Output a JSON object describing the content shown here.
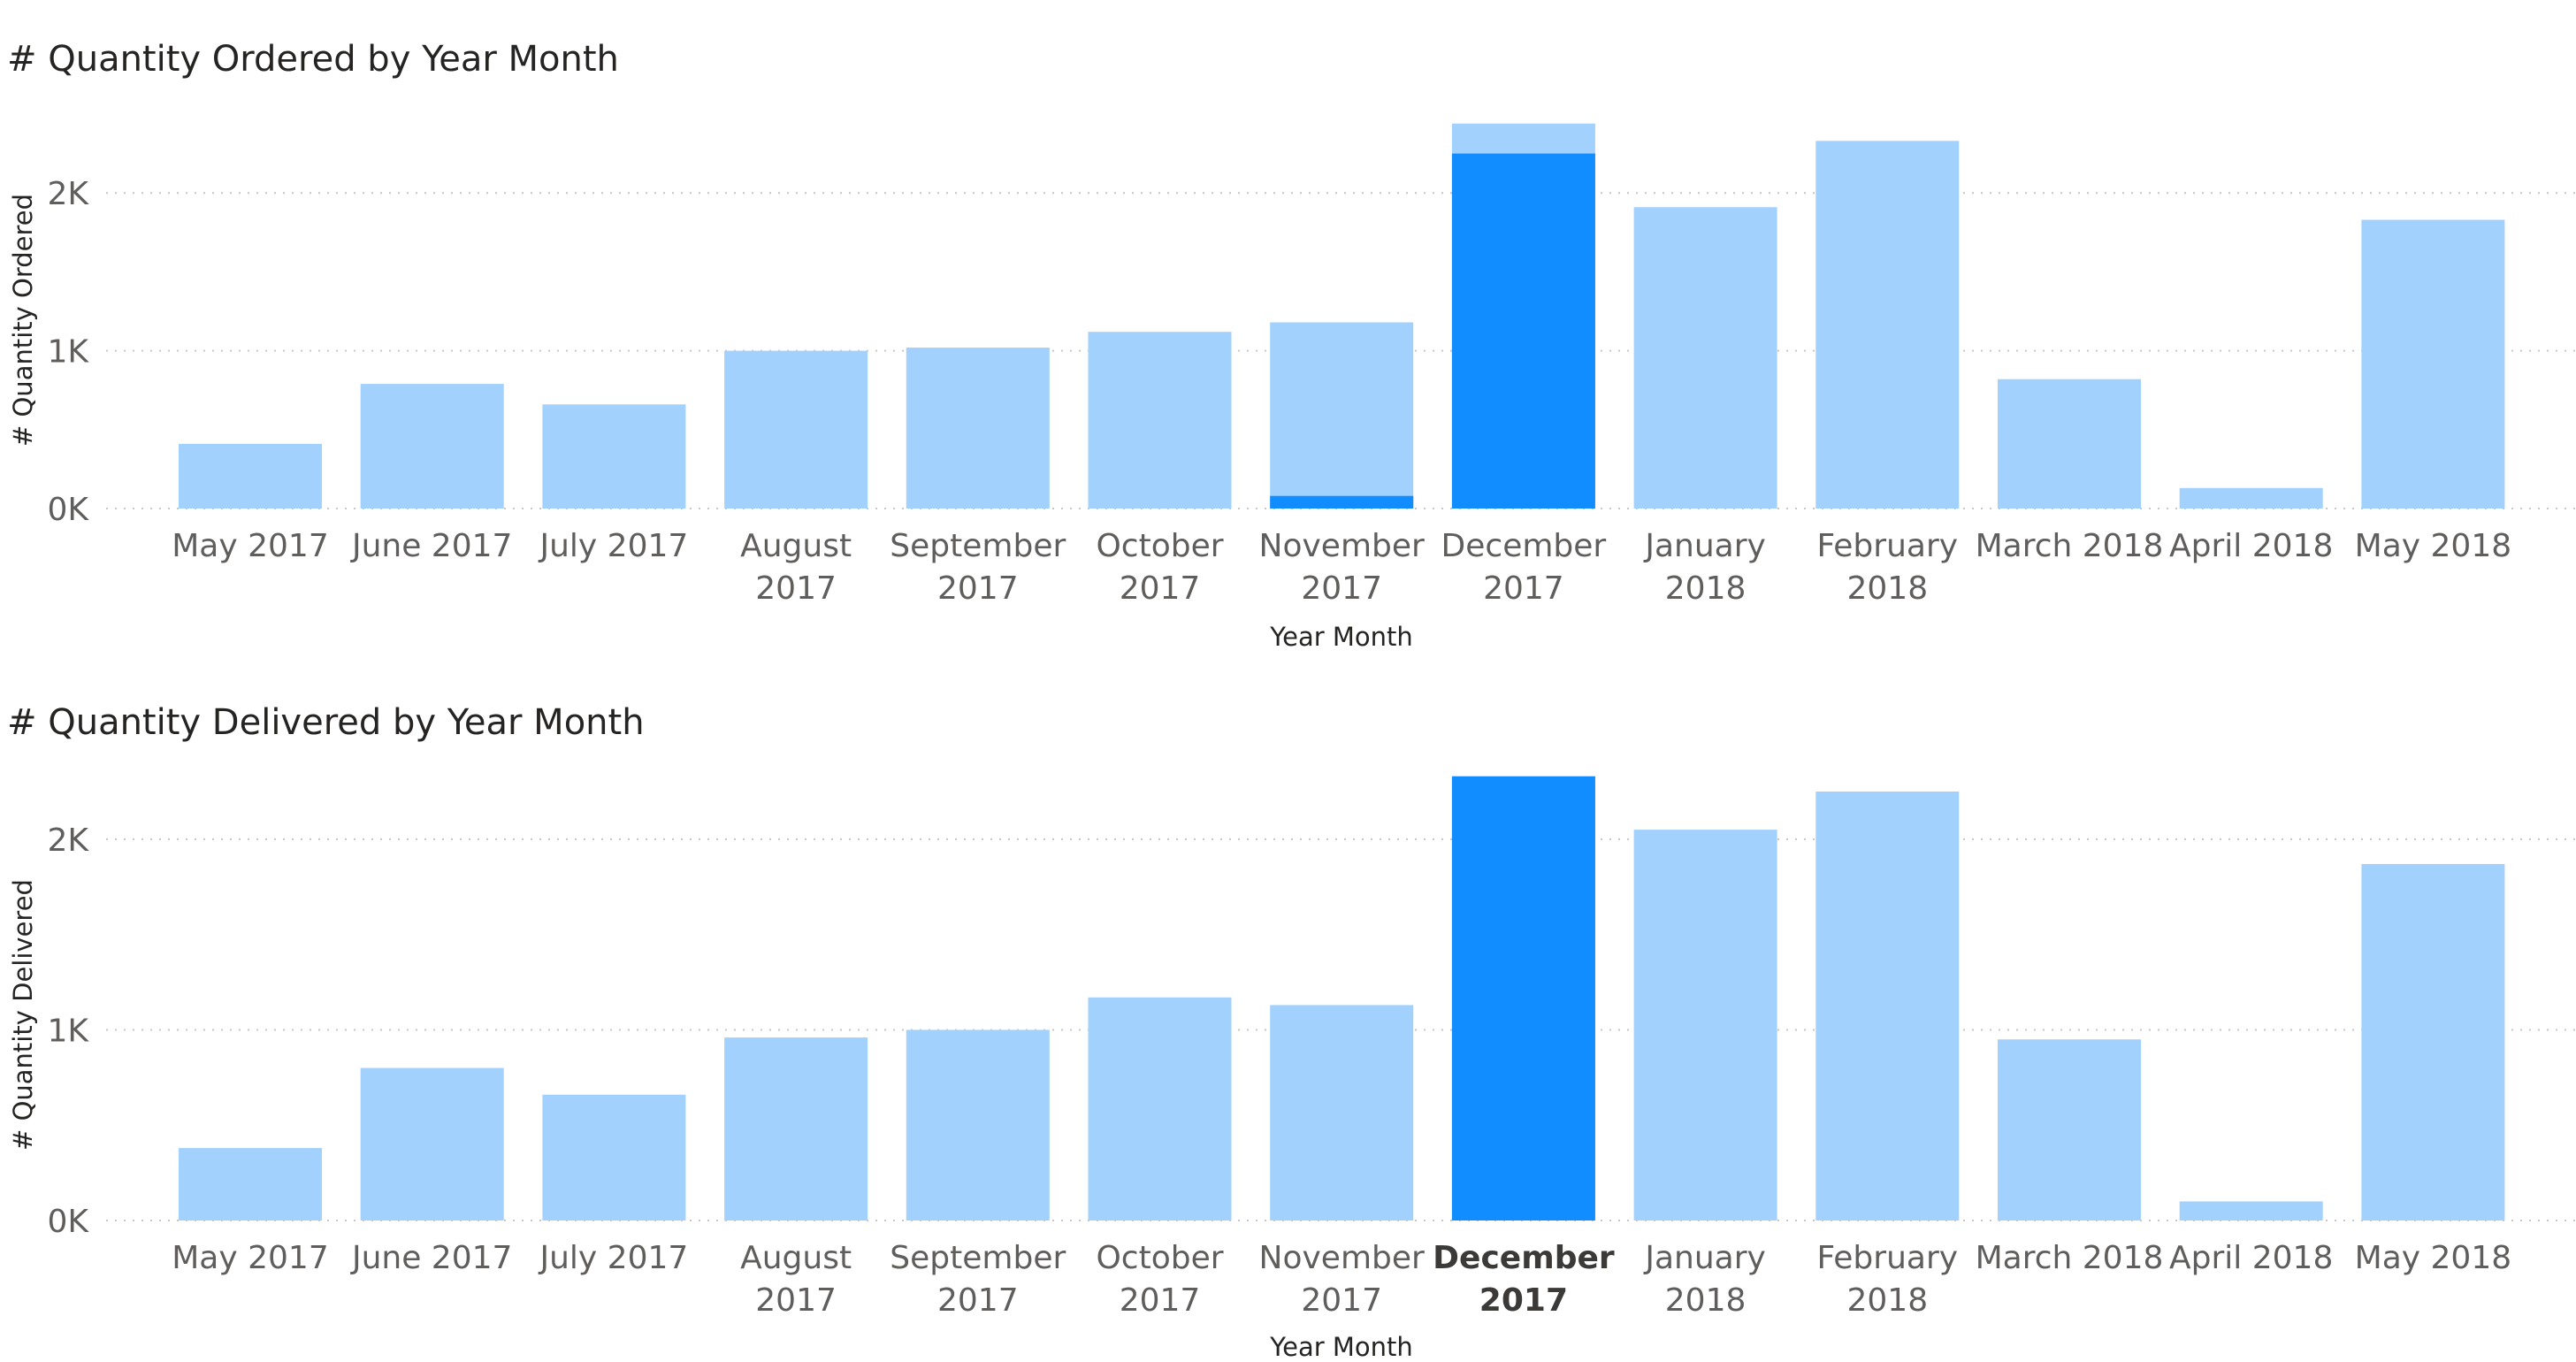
{
  "chart_data": [
    {
      "type": "bar",
      "title": "# Quantity Ordered by Year Month",
      "xlabel": "Year Month",
      "ylabel": "# Quantity Ordered",
      "ylim": [
        0,
        2500
      ],
      "yticks": [
        0,
        1000,
        2000
      ],
      "ytick_labels": [
        "0K",
        "1K",
        "2K"
      ],
      "grid": true,
      "categories": [
        "May 2017",
        "June 2017",
        "July 2017",
        "August 2017",
        "September 2017",
        "October 2017",
        "November 2017",
        "December 2017",
        "January 2018",
        "February 2018",
        "March 2018",
        "April 2018",
        "May 2018"
      ],
      "values": [
        410,
        790,
        660,
        1000,
        1020,
        1120,
        1180,
        2440,
        1910,
        2330,
        820,
        130,
        1830
      ],
      "highlighted_values": [
        0,
        0,
        0,
        0,
        0,
        0,
        80,
        2250,
        0,
        0,
        0,
        0,
        0
      ],
      "selected_category": "December 2017",
      "colors": {
        "base": "#A2D1FD",
        "highlight": "#118DFF"
      }
    },
    {
      "type": "bar",
      "title": "# Quantity Delivered by Year Month",
      "xlabel": "Year Month",
      "ylabel": "# Quantity Delivered",
      "ylim": [
        0,
        2250
      ],
      "yticks": [
        0,
        1000,
        2000
      ],
      "ytick_labels": [
        "0K",
        "1K",
        "2K"
      ],
      "grid": true,
      "categories": [
        "May 2017",
        "June 2017",
        "July 2017",
        "August 2017",
        "September 2017",
        "October 2017",
        "November 2017",
        "December 2017",
        "January 2018",
        "February 2018",
        "March 2018",
        "April 2018",
        "May 2018"
      ],
      "values": [
        380,
        800,
        660,
        960,
        1000,
        1170,
        1130,
        2330,
        2050,
        2250,
        950,
        100,
        1870
      ],
      "highlighted_values": [
        0,
        0,
        0,
        0,
        0,
        0,
        0,
        2330,
        0,
        0,
        0,
        0,
        0
      ],
      "selected_category": "December 2017",
      "colors": {
        "base": "#A2D1FD",
        "highlight": "#118DFF"
      }
    }
  ]
}
